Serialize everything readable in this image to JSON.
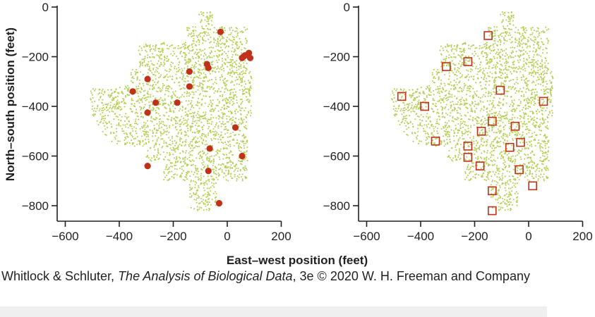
{
  "caption": {
    "authors": "Whitlock & Schluter, ",
    "book_title": "The Analysis of Biological Data",
    "edition_copyright": ", 3e © 2020 W. H. Freeman and Company"
  },
  "colors": {
    "background_points": "#b5cf56",
    "marker_red": "#c0311a",
    "axis": "#231f20"
  },
  "chart_data": [
    {
      "type": "scatter",
      "title": "",
      "xlabel": "East–west position (feet)",
      "ylabel": "North–south position (feet)",
      "xlim": [
        -630,
        200
      ],
      "ylim": [
        -840,
        0
      ],
      "xticks": [
        -600,
        -400,
        -200,
        0,
        200
      ],
      "xtick_labels": [
        "−600",
        "−400",
        "−200",
        "0",
        "200"
      ],
      "yticks": [
        0,
        -200,
        -400,
        -600,
        -800
      ],
      "ytick_labels": [
        "0",
        "−200",
        "−400",
        "−600",
        "−800"
      ],
      "grid": false,
      "background_region": "dense field of small green points filling the irregular sampled area",
      "marker": "filled-circle",
      "series": [
        {
          "x": [
            -25,
            80,
            65,
            60,
            55,
            85,
            -75,
            -70,
            -140,
            -140,
            -295,
            -265,
            -185,
            -350,
            -295,
            30,
            -65,
            55,
            -295,
            -70,
            -30
          ],
          "y": [
            -100,
            -185,
            -195,
            -200,
            -205,
            -205,
            -230,
            -245,
            -260,
            -320,
            -290,
            -385,
            -385,
            -340,
            -425,
            -485,
            -570,
            -600,
            -640,
            -660,
            -790
          ]
        }
      ]
    },
    {
      "type": "scatter",
      "title": "",
      "xlabel": "East–west position (feet)",
      "xlim": [
        -630,
        200
      ],
      "ylim": [
        -840,
        0
      ],
      "xticks": [
        -600,
        -400,
        -200,
        0,
        200
      ],
      "xtick_labels": [
        "−600",
        "−400",
        "−200",
        "0",
        "200"
      ],
      "yticks": [
        0,
        -200,
        -400,
        -600,
        -800
      ],
      "ytick_labels": [
        "0",
        "−200",
        "−400",
        "−600",
        "−800"
      ],
      "grid": false,
      "background_region": "dense field of small green points filling the irregular sampled area",
      "marker": "hollow-square",
      "series": [
        {
          "x": [
            -150,
            -305,
            -225,
            -105,
            -470,
            -385,
            55,
            -135,
            -50,
            -175,
            -345,
            -225,
            -225,
            -180,
            -70,
            -30,
            -35,
            15,
            -135,
            -135
          ],
          "y": [
            -115,
            -240,
            -220,
            -335,
            -360,
            -400,
            -380,
            -460,
            -480,
            -500,
            -540,
            -560,
            -605,
            -640,
            -565,
            -545,
            -655,
            -720,
            -740,
            -820
          ]
        }
      ]
    }
  ]
}
